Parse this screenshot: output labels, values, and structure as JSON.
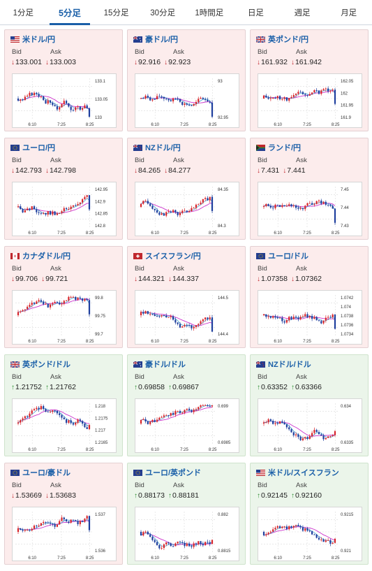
{
  "tabs": [
    {
      "label": "1分足",
      "active": false
    },
    {
      "label": "5分足",
      "active": true
    },
    {
      "label": "15分足",
      "active": false
    },
    {
      "label": "30分足",
      "active": false
    },
    {
      "label": "1時間足",
      "active": false
    },
    {
      "label": "日足",
      "active": false
    },
    {
      "label": "週足",
      "active": false
    },
    {
      "label": "月足",
      "active": false
    }
  ],
  "labels": {
    "bid": "Bid",
    "ask": "Ask"
  },
  "x_ticks": [
    "6:10",
    "7:25",
    "8:25"
  ],
  "colors": {
    "down_card": "#fcecec",
    "up_card": "#ebf5ea",
    "candle_up": "#d9262b",
    "candle_down": "#1f3f9e",
    "ma": "#cc33cc",
    "ma2": "#3399cc",
    "pair_title": "#1a5fa8"
  },
  "cards": [
    {
      "name": "米ドル/円",
      "flag": "us",
      "dir": "down",
      "bid": "133.001",
      "ask": "133.003",
      "y_ticks": [
        "133.1",
        "133.05",
        "133"
      ],
      "seed": 3
    },
    {
      "name": "豪ドル/円",
      "flag": "au",
      "dir": "down",
      "bid": "92.916",
      "ask": "92.923",
      "y_ticks": [
        "93",
        "92.95"
      ],
      "seed": 7
    },
    {
      "name": "英ポンド/円",
      "flag": "gb",
      "dir": "down",
      "bid": "161.932",
      "ask": "161.942",
      "y_ticks": [
        "162.05",
        "162",
        "161.95",
        "161.9"
      ],
      "seed": 11
    },
    {
      "name": "ユーロ/円",
      "flag": "eu",
      "dir": "down",
      "bid": "142.793",
      "ask": "142.798",
      "y_ticks": [
        "142.95",
        "142.9",
        "142.85",
        "142.8"
      ],
      "seed": 13
    },
    {
      "name": "NZドル/円",
      "flag": "nz",
      "dir": "down",
      "bid": "84.265",
      "ask": "84.277",
      "y_ticks": [
        "84.35",
        "84.3"
      ],
      "seed": 17
    },
    {
      "name": "ランド/円",
      "flag": "za",
      "dir": "down",
      "bid": "7.431",
      "ask": "7.441",
      "y_ticks": [
        "7.45",
        "7.44",
        "7.43"
      ],
      "seed": 19
    },
    {
      "name": "カナダドル/円",
      "flag": "ca",
      "dir": "down",
      "bid": "99.706",
      "ask": "99.721",
      "y_ticks": [
        "99.8",
        "99.75",
        "99.7"
      ],
      "seed": 23
    },
    {
      "name": "スイスフラン/円",
      "flag": "ch",
      "dir": "down",
      "bid": "144.321",
      "ask": "144.337",
      "y_ticks": [
        "144.5",
        "144.4"
      ],
      "seed": 29
    },
    {
      "name": "ユーロ/ドル",
      "flag": "eu",
      "dir": "down",
      "bid": "1.07358",
      "ask": "1.07362",
      "y_ticks": [
        "1.0742",
        "1.074",
        "1.0738",
        "1.0736",
        "1.0734"
      ],
      "seed": 31
    },
    {
      "name": "英ポンド/ドル",
      "flag": "gb",
      "dir": "up",
      "bid": "1.21752",
      "ask": "1.21762",
      "y_ticks": [
        "1.218",
        "1.2175",
        "1.217",
        "1.2165"
      ],
      "seed": 37
    },
    {
      "name": "豪ドル/ドル",
      "flag": "au",
      "dir": "up",
      "bid": "0.69858",
      "ask": "0.69867",
      "y_ticks": [
        "0.699",
        "0.6985"
      ],
      "seed": 41
    },
    {
      "name": "NZドル/ドル",
      "flag": "nz",
      "dir": "up",
      "bid": "0.63352",
      "ask": "0.63366",
      "y_ticks": [
        "0.634",
        "0.6335"
      ],
      "seed": 43
    },
    {
      "name": "ユーロ/豪ドル",
      "flag": "eu",
      "dir": "down",
      "bid": "1.53669",
      "ask": "1.53683",
      "y_ticks": [
        "1.537",
        "1.536"
      ],
      "seed": 47
    },
    {
      "name": "ユーロ/英ポンド",
      "flag": "eu",
      "dir": "up",
      "bid": "0.88173",
      "ask": "0.88181",
      "y_ticks": [
        "0.882",
        "0.8815"
      ],
      "seed": 53
    },
    {
      "name": "米ドル/スイスフラン",
      "flag": "us",
      "dir": "up",
      "bid": "0.92145",
      "ask": "0.92160",
      "y_ticks": [
        "0.9215",
        "0.921"
      ],
      "seed": 59
    }
  ]
}
